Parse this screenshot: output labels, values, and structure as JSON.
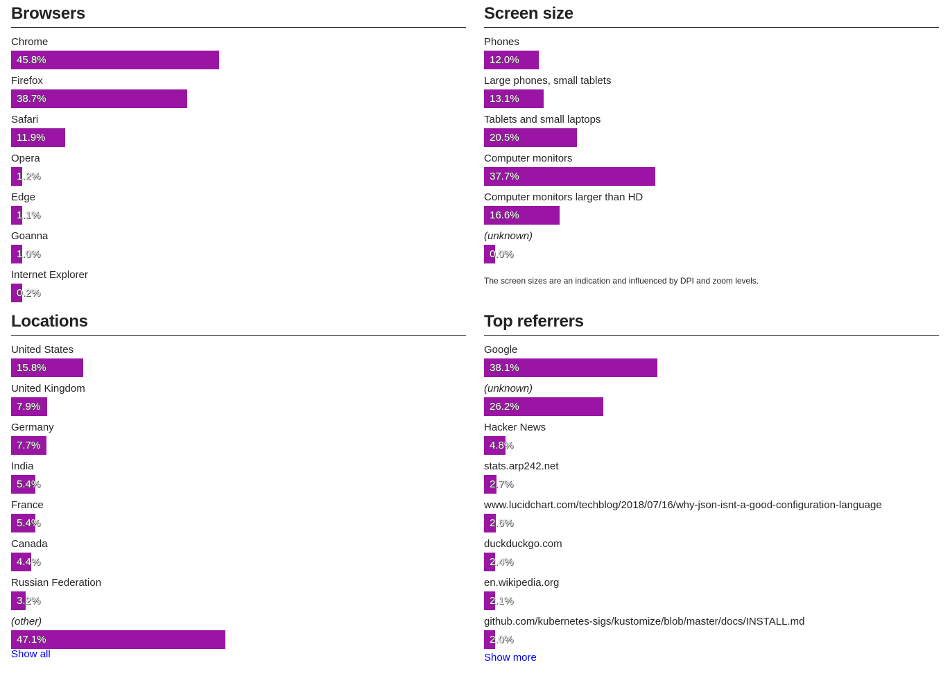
{
  "colors": {
    "bar": "#9a15a4",
    "link": "#0000ee"
  },
  "browsers": {
    "title": "Browsers",
    "items": [
      {
        "label": "Chrome",
        "percent": 45.8,
        "text": "45.8%"
      },
      {
        "label": "Firefox",
        "percent": 38.7,
        "text": "38.7%"
      },
      {
        "label": "Safari",
        "percent": 11.9,
        "text": "11.9%"
      },
      {
        "label": "Opera",
        "percent": 1.2,
        "text": "1.2%"
      },
      {
        "label": "Edge",
        "percent": 1.1,
        "text": "1.1%"
      },
      {
        "label": "Goanna",
        "percent": 1.0,
        "text": "1.0%"
      },
      {
        "label": "Internet Explorer",
        "percent": 0.2,
        "text": "0.2%"
      }
    ]
  },
  "screen_size": {
    "title": "Screen size",
    "items": [
      {
        "label": "Phones",
        "percent": 12.0,
        "text": "12.0%"
      },
      {
        "label": "Large phones, small tablets",
        "percent": 13.1,
        "text": "13.1%"
      },
      {
        "label": "Tablets and small laptops",
        "percent": 20.5,
        "text": "20.5%"
      },
      {
        "label": "Computer monitors",
        "percent": 37.7,
        "text": "37.7%"
      },
      {
        "label": "Computer monitors larger than HD",
        "percent": 16.6,
        "text": "16.6%"
      },
      {
        "label": "(unknown)",
        "percent": 0.0,
        "text": "0.0%",
        "italic": true
      }
    ],
    "note": "The screen sizes are an indication and influenced by DPI and zoom levels."
  },
  "locations": {
    "title": "Locations",
    "items": [
      {
        "label": "United States",
        "percent": 15.8,
        "text": "15.8%"
      },
      {
        "label": "United Kingdom",
        "percent": 7.9,
        "text": "7.9%"
      },
      {
        "label": "Germany",
        "percent": 7.7,
        "text": "7.7%"
      },
      {
        "label": "India",
        "percent": 5.4,
        "text": "5.4%"
      },
      {
        "label": "France",
        "percent": 5.4,
        "text": "5.4%"
      },
      {
        "label": "Canada",
        "percent": 4.4,
        "text": "4.4%"
      },
      {
        "label": "Russian Federation",
        "percent": 3.2,
        "text": "3.2%"
      },
      {
        "label": "(other)",
        "percent": 47.1,
        "text": "47.1%",
        "italic": true
      }
    ],
    "link": "Show all"
  },
  "top_referrers": {
    "title": "Top referrers",
    "items": [
      {
        "label": "Google",
        "percent": 38.1,
        "text": "38.1%"
      },
      {
        "label": "(unknown)",
        "percent": 26.2,
        "text": "26.2%",
        "italic": true
      },
      {
        "label": "Hacker News",
        "percent": 4.8,
        "text": "4.8%"
      },
      {
        "label": "stats.arp242.net",
        "percent": 2.7,
        "text": "2.7%"
      },
      {
        "label": "www.lucidchart.com/techblog/2018/07/16/why-json-isnt-a-good-configuration-language",
        "percent": 2.6,
        "text": "2.6%"
      },
      {
        "label": "duckduckgo.com",
        "percent": 2.4,
        "text": "2.4%"
      },
      {
        "label": "en.wikipedia.org",
        "percent": 2.1,
        "text": "2.1%"
      },
      {
        "label": "github.com/kubernetes-sigs/kustomize/blob/master/docs/INSTALL.md",
        "percent": 2.0,
        "text": "2.0%"
      }
    ],
    "link": "Show more"
  }
}
